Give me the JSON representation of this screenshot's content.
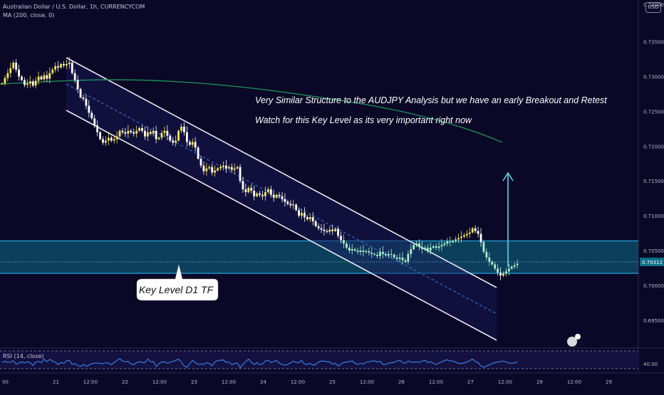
{
  "header": {
    "line1": "Australian Dollar / U.S. Dollar, 1h, CURRENCYCOM",
    "line2": "MA (200, close, 0)"
  },
  "currency_button": "USD",
  "rsi_label": "RSI (14, close)",
  "rsi_value": "40.00",
  "current_price": "0.70312",
  "colors": {
    "background": "#0a0826",
    "zone_fill": "#0e6e86",
    "zone_border": "#1e90c8",
    "ma_line": "#1d8a58",
    "candle_up": "#f7e350",
    "candle_down": "#ffffff",
    "candle_zone": "#a8f0cc",
    "rsi_line": "#3a7dde",
    "arrow": "#5ad6e2"
  },
  "annotations": {
    "line1": "Very Similar Structure to the AUDJPY Analysis but we have an early Breakout and Retest",
    "line2": "Watch for this Key Level as its very important right now",
    "callout": "Key Level D1 TF"
  },
  "chart_data": {
    "type": "candlestick",
    "title": "Australian Dollar / U.S. Dollar, 1h, CURRENCYCOM",
    "y_ticks": [
      "0.73500",
      "0.73000",
      "0.72500",
      "0.72000",
      "0.71500",
      "0.71000",
      "0.70500",
      "0.70000",
      "0.69500"
    ],
    "y_tick_values": [
      0.735,
      0.73,
      0.725,
      0.72,
      0.715,
      0.71,
      0.705,
      0.7,
      0.695
    ],
    "x_ticks": [
      "00",
      "21",
      "12:00",
      "22",
      "12:00",
      "23",
      "12:00",
      "24",
      "12:00",
      "25",
      "12:00",
      "26",
      "12:00",
      "27",
      "12:00",
      "28",
      "12:00",
      "29"
    ],
    "ylim": [
      0.6925,
      0.7412
    ],
    "closes": [
      0.729,
      0.7298,
      0.7305,
      0.7312,
      0.732,
      0.731,
      0.73,
      0.7295,
      0.7288,
      0.729,
      0.7293,
      0.7287,
      0.7294,
      0.73,
      0.7296,
      0.7302,
      0.7297,
      0.7305,
      0.731,
      0.7315,
      0.7313,
      0.7318,
      0.7316,
      0.7318,
      0.732,
      0.7305,
      0.7295,
      0.7282,
      0.727,
      0.7268,
      0.7258,
      0.7248,
      0.724,
      0.723,
      0.722,
      0.721,
      0.7205,
      0.7208,
      0.7212,
      0.7208,
      0.721,
      0.7214,
      0.7222,
      0.722,
      0.7218,
      0.7222,
      0.722,
      0.7218,
      0.7222,
      0.7226,
      0.7222,
      0.7214,
      0.722,
      0.7218,
      0.7222,
      0.721,
      0.7212,
      0.7219,
      0.7222,
      0.7215,
      0.7208,
      0.7205,
      0.7208,
      0.7222,
      0.7228,
      0.722,
      0.7206,
      0.7202,
      0.7206,
      0.7198,
      0.7182,
      0.7172,
      0.7164,
      0.7168,
      0.717,
      0.7162,
      0.7165,
      0.7168,
      0.717,
      0.7172,
      0.7168,
      0.717,
      0.7166,
      0.7168,
      0.717,
      0.715,
      0.7138,
      0.7134,
      0.714,
      0.7136,
      0.7128,
      0.7132,
      0.713,
      0.7128,
      0.7134,
      0.7138,
      0.713,
      0.7126,
      0.713,
      0.7128,
      0.7124,
      0.712,
      0.7117,
      0.7115,
      0.7116,
      0.7108,
      0.71,
      0.7104,
      0.7098,
      0.7095,
      0.7098,
      0.7092,
      0.7085,
      0.7082,
      0.708,
      0.7078,
      0.7077,
      0.708,
      0.7078,
      0.7081,
      0.7071,
      0.7065,
      0.706,
      0.7054,
      0.705,
      0.7052,
      0.705,
      0.7048,
      0.705,
      0.7048,
      0.7049,
      0.7047,
      0.7045,
      0.7044,
      0.7042,
      0.7048,
      0.7045,
      0.7043,
      0.7045,
      0.7044,
      0.704,
      0.7038,
      0.704,
      0.7036,
      0.7034,
      0.7045,
      0.7052,
      0.7058,
      0.706,
      0.7055,
      0.7052,
      0.7054,
      0.705,
      0.7054,
      0.7056,
      0.7054,
      0.7056,
      0.7058,
      0.706,
      0.7063,
      0.7062,
      0.7064,
      0.7066,
      0.7068,
      0.707,
      0.7072,
      0.7074,
      0.7076,
      0.7082,
      0.7078,
      0.7074,
      0.7062,
      0.7048,
      0.704,
      0.7034,
      0.703,
      0.7024,
      0.7018,
      0.7014,
      0.7017,
      0.702,
      0.7024,
      0.7027,
      0.7029,
      0.7031
    ]
  },
  "rsi": {
    "level_upper": 50,
    "level_lower": 40
  }
}
